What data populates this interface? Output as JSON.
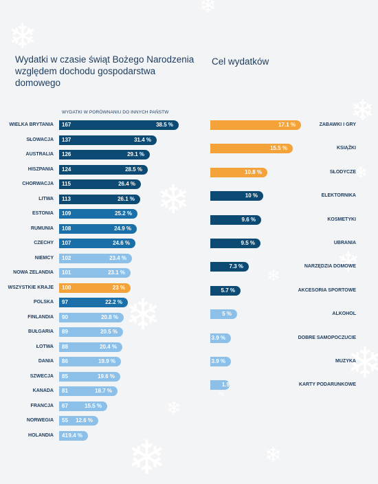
{
  "title": "Wydatki w czasie świąt Bożego Narodzenia względem dochodu gospodarstwa domowego",
  "title_right": "Cel wydatków",
  "subtitle": "WYDATKI W PORÓWNANIU DO INNYCH PAŃSTW",
  "colors": {
    "dark": "#0d4a73",
    "mid": "#1a6fa8",
    "light": "#8cc0e8",
    "orange": "#f4a23a",
    "text": "#1b3a5c",
    "background": "#f3f4f6"
  },
  "chart_data": [
    {
      "type": "bar",
      "title": "WYDATKI W PORÓWNANIU DO INNYCH PAŃSTW",
      "categories": [
        "WIELKA BRYTANIA",
        "SŁOWACJA",
        "AUSTRALIA",
        "HISZPANIA",
        "CHORWACJA",
        "LITWA",
        "ESTONIA",
        "RUMUNIA",
        "CZECHY",
        "NIEMCY",
        "NOWA ZELANDIA",
        "WSZYSTKIE KRAJE",
        "POLSKA",
        "FINLANDIA",
        "BUŁGARIA",
        "ŁOTWA",
        "DANIA",
        "SZWECJA",
        "KANADA",
        "FRANCJA",
        "NORWEGIA",
        "HOLANDIA"
      ],
      "series": [
        {
          "values": [
            167,
            137,
            126,
            124,
            115,
            113,
            109,
            108,
            107,
            102,
            101,
            100,
            97,
            90,
            89,
            88,
            86,
            85,
            81,
            67,
            55,
            41
          ]
        },
        {
          "values": [
            "38.5 %",
            "31.4 %",
            "29.1 %",
            "28.5 %",
            "26.4 %",
            "26.1 %",
            "25.2 %",
            "24.9 %",
            "24.6 %",
            "23.4 %",
            "23.1 %",
            "23 %",
            "22.2 %",
            "20.8 %",
            "20.5 %",
            "20.4 %",
            "19.9 %",
            "19.6 %",
            "18.7 %",
            "15.5 %",
            "12.6 %",
            "9.4 %"
          ]
        }
      ],
      "percent_values": [
        38.5,
        31.4,
        29.1,
        28.5,
        26.4,
        26.1,
        25.2,
        24.9,
        24.6,
        23.4,
        23.1,
        23,
        22.2,
        20.8,
        20.5,
        20.4,
        19.9,
        19.6,
        18.7,
        15.5,
        12.6,
        9.4
      ],
      "colors": [
        "dark",
        "dark",
        "dark",
        "dark",
        "dark",
        "dark",
        "mid",
        "mid",
        "mid",
        "light",
        "light",
        "orange",
        "mid",
        "light",
        "light",
        "light",
        "light",
        "light",
        "light",
        "light",
        "light",
        "light"
      ]
    },
    {
      "type": "bar",
      "title": "Cel wydatków",
      "categories": [
        "ZABAWKI I GRY",
        "KSIĄŻKI",
        "SŁODYCZE",
        "ELEKTORNIKA",
        "KOSMETYKI",
        "UBRANIA",
        "NARZĘDZIA DOMOWE",
        "AKCESORIA SPORTOWE",
        "ALKOHOL",
        "DOBRE SAMOPOCZUCIE",
        "MUZYKA",
        "KARTY PODARUNKOWE"
      ],
      "values": [
        17.1,
        15.5,
        10.8,
        10,
        9.6,
        9.5,
        7.3,
        5.7,
        5,
        3.9,
        3.9,
        1.9
      ],
      "labels": [
        "17.1 %",
        "15.5 %",
        "10.8 %",
        "10 %",
        "9.6 %",
        "9.5 %",
        "7.3 %",
        "5.7 %",
        "5 %",
        "3.9 %",
        "3.9 %",
        "1.9 %"
      ],
      "colors": [
        "orange",
        "orange",
        "orange",
        "dark",
        "dark",
        "dark",
        "dark",
        "dark",
        "light",
        "light",
        "light",
        "light"
      ]
    }
  ]
}
